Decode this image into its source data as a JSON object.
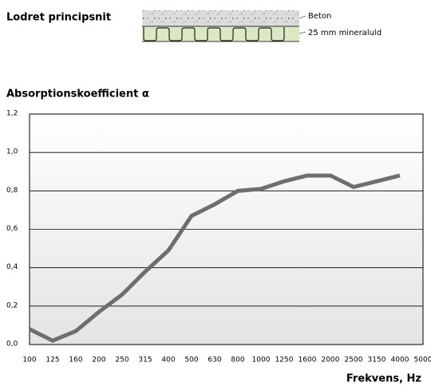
{
  "header": {
    "title": "Lodret principsnit",
    "layers": [
      "Beton",
      "25 mm mineraluld"
    ]
  },
  "chart_data": {
    "type": "line",
    "title": "Absorptionskoefficient α",
    "x_label": "Frekvens, Hz",
    "categories": [
      "100",
      "125",
      "160",
      "200",
      "250",
      "315",
      "400",
      "500",
      "630",
      "800",
      "1000",
      "1250",
      "1600",
      "2000",
      "2500",
      "3150",
      "4000",
      "5000"
    ],
    "series": [
      {
        "color": "#6e6e6e",
        "values": [
          0.08,
          0.02,
          0.07,
          0.17,
          0.26,
          0.38,
          0.49,
          0.67,
          0.73,
          0.8,
          0.81,
          0.85,
          0.88,
          0.88,
          0.82,
          0.85,
          0.88,
          null
        ]
      }
    ],
    "ylim": [
      0,
      1.2
    ],
    "yticks": [
      {
        "value": 0,
        "label": "0,0"
      },
      {
        "value": 0.2,
        "label": "0,2"
      },
      {
        "value": 0.4,
        "label": "0,4"
      },
      {
        "value": 0.6,
        "label": "0,6"
      },
      {
        "value": 0.8,
        "label": "0,8"
      },
      {
        "value": 1.0,
        "label": "1,0"
      },
      {
        "value": 1.2,
        "label": "1,2"
      }
    ],
    "grid": true
  }
}
